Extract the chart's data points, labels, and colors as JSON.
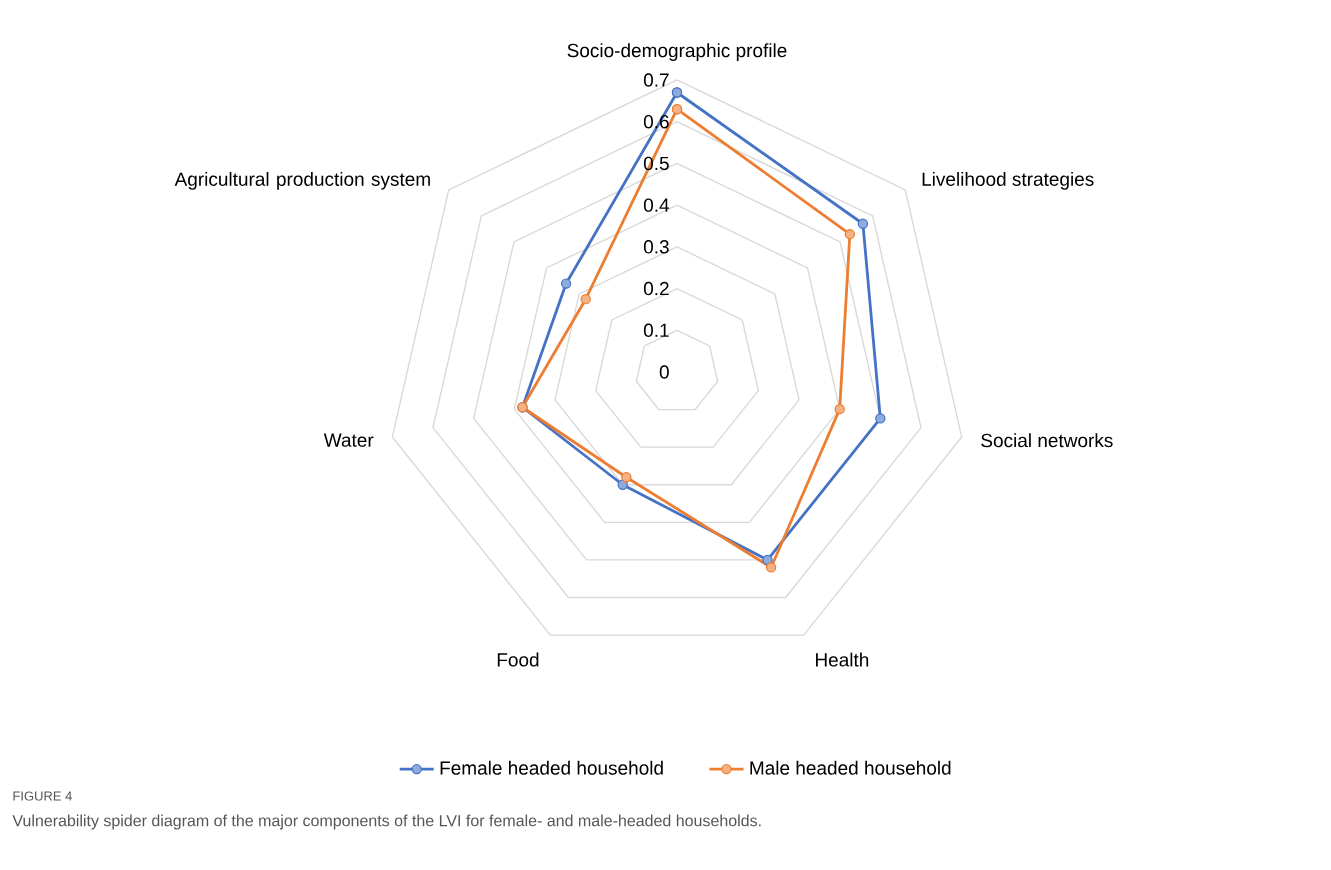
{
  "chart_data": {
    "type": "radar",
    "categories": [
      "Socio-demographic profile",
      "Livelihood strategies",
      "Social networks",
      "Health",
      "Food",
      "Water",
      "Agricultural production system"
    ],
    "series": [
      {
        "name": "Female headed household",
        "color": "#4472c4",
        "values": [
          0.67,
          0.57,
          0.5,
          0.5,
          0.3,
          0.38,
          0.34
        ]
      },
      {
        "name": "Male headed household",
        "color": "#ed7d31",
        "values": [
          0.63,
          0.53,
          0.4,
          0.52,
          0.28,
          0.38,
          0.28
        ]
      }
    ],
    "ylim": [
      0,
      0.7
    ],
    "yticks": [
      0,
      0.1,
      0.2,
      0.3,
      0.4,
      0.5,
      0.6,
      0.7
    ],
    "grid": true,
    "legend": "bottom",
    "marker": "circle",
    "line_style": "solid",
    "annotations": [
      "FIGURE 4",
      "Vulnerability spider diagram of the major components of the LVI for female- and male-headed households."
    ]
  }
}
